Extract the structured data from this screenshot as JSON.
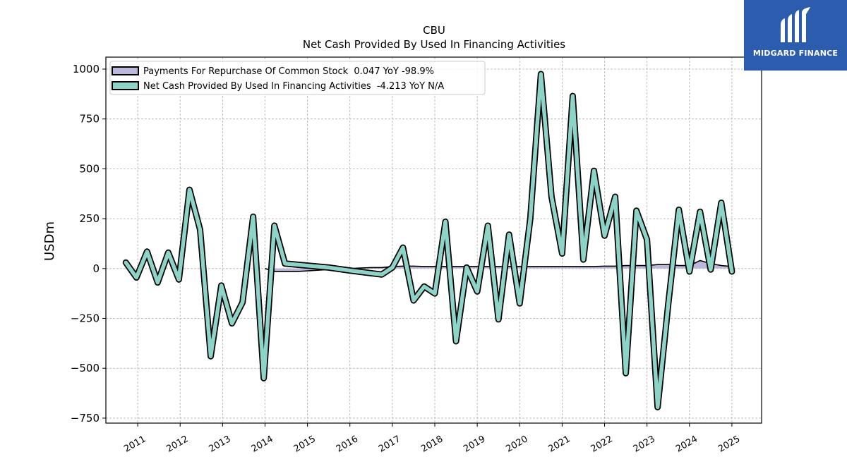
{
  "chart_data": {
    "type": "line",
    "title": "CBU",
    "subtitle": "Net Cash Provided By Used In Financing Activities",
    "ylabel": "USDm",
    "xlabel": "",
    "ylim": [
      -775,
      1060
    ],
    "xlim": [
      2010.25,
      2025.7
    ],
    "yticks": [
      1000,
      750,
      500,
      250,
      0,
      -250,
      -500,
      -750
    ],
    "ytick_labels": [
      "1000",
      "750",
      "500",
      "250",
      "0",
      "−250",
      "−500",
      "−750"
    ],
    "xticks": [
      2011,
      2012,
      2013,
      2014,
      2015,
      2016,
      2017,
      2018,
      2019,
      2020,
      2021,
      2022,
      2023,
      2024,
      2025
    ],
    "xtick_labels": [
      "2011",
      "2012",
      "2013",
      "2014",
      "2015",
      "2016",
      "2017",
      "2018",
      "2019",
      "2020",
      "2021",
      "2022",
      "2023",
      "2024",
      "2025"
    ],
    "grid": true,
    "legend_position": "top-left",
    "series": [
      {
        "name": "Payments For Repurchase Of Common Stock",
        "legend_label": "Payments For Repurchase Of Common Stock  0.047 YoY -98.9%",
        "color": "#bcb8d9",
        "style": "area",
        "x": [
          2014.0,
          2014.25,
          2014.75,
          2015.5,
          2016.0,
          2016.5,
          2016.75,
          2017.0,
          2017.25,
          2017.5,
          2017.75,
          2018.0,
          2018.5,
          2019.0,
          2019.5,
          2020.0,
          2020.5,
          2021.0,
          2021.5,
          2021.75,
          2022.0,
          2022.25,
          2022.5,
          2022.75,
          2023.0,
          2023.25,
          2023.5,
          2023.75,
          2024.0,
          2024.25,
          2024.5,
          2024.75,
          2025.0
        ],
        "y": [
          0,
          -15,
          -15,
          -5,
          0,
          5,
          5,
          10,
          12,
          12,
          10,
          10,
          10,
          10,
          10,
          10,
          10,
          10,
          10,
          10,
          12,
          12,
          15,
          15,
          15,
          20,
          20,
          15,
          15,
          40,
          25,
          15,
          10
        ]
      },
      {
        "name": "Net Cash Provided By Used In Financing Activities",
        "legend_label": "Net Cash Provided By Used In Financing Activities  -4.213 YoY N/A",
        "color": "#8dd3c7",
        "style": "line",
        "x": [
          2010.72,
          2010.97,
          2011.22,
          2011.47,
          2011.72,
          2011.97,
          2012.22,
          2012.47,
          2012.72,
          2012.97,
          2013.22,
          2013.47,
          2013.72,
          2013.97,
          2014.22,
          2014.47,
          2015.5,
          2016.0,
          2016.75,
          2017.0,
          2017.25,
          2017.5,
          2017.75,
          2018.0,
          2018.25,
          2018.5,
          2018.75,
          2019.0,
          2019.25,
          2019.5,
          2019.75,
          2020.0,
          2020.25,
          2020.5,
          2020.75,
          2021.0,
          2021.25,
          2021.5,
          2021.75,
          2022.0,
          2022.25,
          2022.5,
          2022.75,
          2023.0,
          2023.25,
          2023.5,
          2023.75,
          2024.0,
          2024.25,
          2024.5,
          2024.75,
          2025.0
        ],
        "y": [
          30,
          -45,
          85,
          -70,
          80,
          -55,
          395,
          195,
          -440,
          -85,
          -275,
          -170,
          260,
          -550,
          215,
          25,
          5,
          -10,
          -30,
          5,
          105,
          -160,
          -90,
          -125,
          235,
          -365,
          5,
          -115,
          215,
          -255,
          170,
          -175,
          250,
          975,
          360,
          75,
          865,
          45,
          490,
          165,
          360,
          -525,
          290,
          145,
          -695,
          -180,
          295,
          -15,
          285,
          -5,
          330,
          -15
        ]
      }
    ]
  },
  "logo": {
    "text": "MIDGARD FINANCE"
  }
}
